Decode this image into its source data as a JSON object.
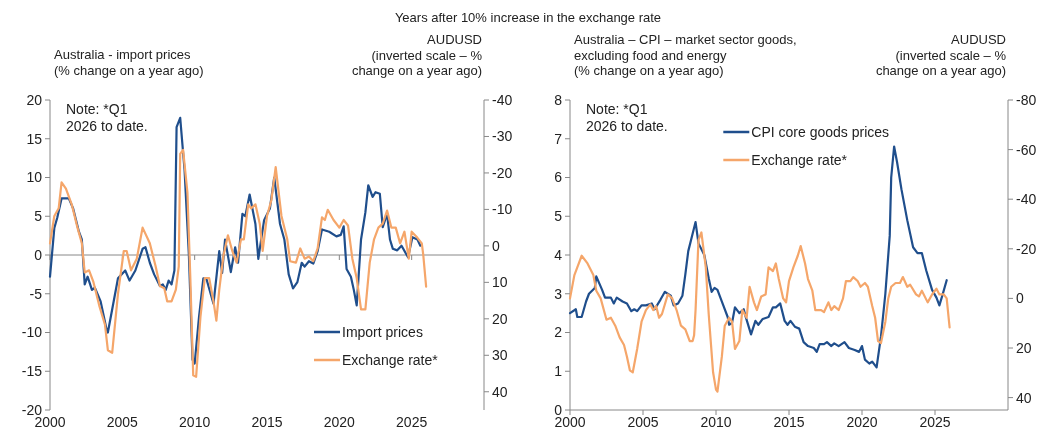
{
  "chart_data": [
    {
      "type": "line",
      "title": "Years after 10% increase in the exchange rate",
      "ylabel": "Australia - import prices\n(% change on a year ago)",
      "y2label": "AUDUSD\n(inverted scale – %\nchange on a year ago)",
      "annotations": [
        "Note: *Q1\n2026 to date."
      ],
      "xlim": [
        2000,
        2030
      ],
      "xticks": [
        2000,
        2005,
        2010,
        2015,
        2020,
        2025
      ],
      "ylim": [
        -20,
        20
      ],
      "yticks": [
        -20,
        -15,
        -10,
        -5,
        0,
        5,
        10,
        15,
        20
      ],
      "y2lim": [
        45,
        -40
      ],
      "y2ticks": [
        -40,
        -30,
        -20,
        -10,
        0,
        10,
        20,
        30,
        40
      ],
      "legend": "bottom right",
      "series": [
        {
          "name": "Import prices",
          "color": "#1f4e8c",
          "x": [
            2000.0,
            2000.3,
            2000.5,
            2000.8,
            2001.3,
            2001.6,
            2002.0,
            2002.2,
            2002.4,
            2002.6,
            2002.9,
            2003.1,
            2003.5,
            2003.9,
            2004.0,
            2004.4,
            2004.7,
            2005.2,
            2005.5,
            2005.9,
            2006.4,
            2006.6,
            2006.9,
            2007.2,
            2007.6,
            2007.8,
            2008.0,
            2008.2,
            2008.4,
            2008.6,
            2008.75,
            2009.0,
            2009.3,
            2009.6,
            2009.85,
            2010.0,
            2010.3,
            2010.6,
            2010.8,
            2011.3,
            2011.7,
            2011.9,
            2012.1,
            2012.5,
            2012.8,
            2013.0,
            2013.3,
            2013.5,
            2013.8,
            2014.2,
            2014.4,
            2014.8,
            2015.2,
            2015.5,
            2015.9,
            2016.2,
            2016.5,
            2016.8,
            2017.1,
            2017.4,
            2017.6,
            2017.9,
            2018.2,
            2018.5,
            2018.8,
            2019.3,
            2019.8,
            2020.1,
            2020.3,
            2020.5,
            2020.8,
            2021.0,
            2021.2,
            2021.5,
            2021.8,
            2022.0,
            2022.3,
            2022.5,
            2022.8,
            2023.0,
            2023.3,
            2023.5,
            2023.7,
            2024.0,
            2024.3,
            2024.75,
            2025.05,
            2025.4,
            2025.6
          ],
          "values": [
            -2.8,
            3.5,
            4.8,
            7.3,
            7.3,
            6,
            3,
            2,
            -3.8,
            -2.8,
            -4.5,
            -4.2,
            -6,
            -9.5,
            -10,
            -6,
            -3,
            -2,
            -3.3,
            -2,
            0.8,
            1,
            -1,
            -2.5,
            -4,
            -3.8,
            -4.5,
            -3.3,
            -3.8,
            -2,
            16.5,
            17.7,
            11,
            0,
            -13.5,
            -14,
            -8,
            -3,
            -3,
            -6.3,
            0.5,
            -2.3,
            2,
            -2.2,
            1,
            -1,
            5.3,
            5.0,
            7.8,
            4,
            -0.5,
            4.5,
            6,
            10,
            4,
            2,
            -2.5,
            -4.3,
            -3.5,
            -1,
            -1.5,
            -0.8,
            -1.1,
            0.5,
            3.3,
            3,
            2.4,
            2.6,
            3.7,
            -1.8,
            -2.8,
            -4.5,
            -6.5,
            2,
            5.5,
            9,
            7.5,
            8.1,
            7.9,
            3.6,
            5.3,
            2,
            0.8,
            0.6,
            1.2,
            -0.3,
            2.3,
            2,
            1.2
          ]
        },
        {
          "name": "Exchange rate*",
          "color": "#f5a66a",
          "axis": "y2",
          "x": [
            2000.0,
            2000.3,
            2000.6,
            2000.8,
            2001.1,
            2001.5,
            2001.9,
            2002.2,
            2002.4,
            2002.7,
            2003.0,
            2003.4,
            2003.8,
            2004.0,
            2004.3,
            2004.7,
            2005.1,
            2005.3,
            2005.6,
            2006.0,
            2006.4,
            2006.9,
            2007.3,
            2007.6,
            2007.9,
            2008.1,
            2008.4,
            2008.7,
            2008.9,
            2009.0,
            2009.2,
            2009.5,
            2009.7,
            2009.9,
            2010.1,
            2010.4,
            2010.7,
            2011.0,
            2011.3,
            2011.5,
            2011.7,
            2012.0,
            2012.3,
            2012.6,
            2012.9,
            2013.2,
            2013.4,
            2013.7,
            2013.9,
            2014.2,
            2014.5,
            2014.7,
            2015.0,
            2015.3,
            2015.6,
            2016.0,
            2016.4,
            2016.6,
            2017.0,
            2017.3,
            2017.6,
            2017.9,
            2018.2,
            2018.5,
            2018.8,
            2019.0,
            2019.2,
            2019.6,
            2020.0,
            2020.3,
            2020.6,
            2020.9,
            2021.2,
            2021.5,
            2021.8,
            2022.1,
            2022.4,
            2022.7,
            2023.0,
            2023.3,
            2023.6,
            2023.9,
            2024.2,
            2024.5,
            2024.8,
            2025.0,
            2025.4,
            2025.7,
            2025.8,
            2026.0
          ],
          "values": [
            -0.7,
            -8.2,
            -10.3,
            -17.4,
            -15.7,
            -11.4,
            -5.0,
            -0.7,
            7.3,
            6.7,
            9.9,
            16.3,
            21.6,
            28.6,
            29.3,
            13.1,
            1.4,
            1.4,
            6.7,
            3.5,
            -5.0,
            -0.7,
            5.6,
            11.0,
            11.6,
            15.2,
            15.2,
            12.0,
            5.6,
            -25.2,
            -26.3,
            -14.6,
            8.8,
            35.5,
            35.9,
            19.5,
            8.8,
            8.8,
            15.2,
            20.5,
            12.0,
            2.4,
            -2.9,
            1.4,
            4.6,
            -1.8,
            -1.8,
            -11.4,
            -10.3,
            -11.4,
            -6.1,
            1.4,
            -8.2,
            -12.5,
            -21.6,
            -8.2,
            -1.8,
            4.2,
            4.6,
            0.7,
            3.5,
            2.9,
            4.2,
            0.7,
            -7.8,
            -7.1,
            -9.9,
            -7.1,
            -5.0,
            -7.1,
            -5.6,
            3.5,
            8.8,
            17.4,
            17.4,
            4.6,
            -1.8,
            -5.0,
            -6.1,
            -9.7,
            -5.0,
            -5.0,
            -0.7,
            -3.9,
            3.5,
            -3.9,
            -2.2,
            -0.7,
            2.4,
            11.2
          ]
        }
      ]
    },
    {
      "type": "line",
      "ylabel": "Australia – CPI – market sector goods,\nexcluding food and energy\n(% change on a year ago)",
      "y2label": "AUDUSD\n(inverted scale – %\nchange on a year ago)",
      "annotations": [
        "Note: *Q1\n2026 to date."
      ],
      "xlim": [
        2000,
        2030
      ],
      "xticks": [
        2000,
        2005,
        2010,
        2015,
        2020,
        2025
      ],
      "ylim": [
        0,
        8
      ],
      "yticks": [
        0,
        1,
        2,
        3,
        4,
        5,
        6,
        7,
        8
      ],
      "y2lim": [
        45,
        -80
      ],
      "y2ticks": [
        -80,
        -60,
        -40,
        -20,
        0,
        20,
        40
      ],
      "legend": "top",
      "series": [
        {
          "name": "CPI core goods prices",
          "color": "#1f4e8c",
          "x": [
            2000.0,
            2000.4,
            2000.5,
            2000.8,
            2001.1,
            2001.3,
            2001.7,
            2001.8,
            2002.2,
            2002.4,
            2002.8,
            2003.0,
            2003.2,
            2003.6,
            2003.9,
            2004.2,
            2004.4,
            2004.6,
            2004.9,
            2005.2,
            2005.6,
            2005.8,
            2006.2,
            2006.5,
            2006.9,
            2007.1,
            2007.4,
            2007.7,
            2007.9,
            2008.1,
            2008.3,
            2008.6,
            2008.8,
            2009.2,
            2009.5,
            2009.7,
            2009.9,
            2010.1,
            2010.5,
            2010.8,
            2010.9,
            2011.1,
            2011.3,
            2011.6,
            2011.9,
            2012.0,
            2012.4,
            2012.7,
            2012.9,
            2013.2,
            2013.6,
            2013.9,
            2014.1,
            2014.4,
            2014.7,
            2014.9,
            2015.1,
            2015.4,
            2015.7,
            2016.0,
            2016.3,
            2016.7,
            2016.9,
            2017.1,
            2017.4,
            2017.6,
            2017.9,
            2018.1,
            2018.4,
            2018.8,
            2019.1,
            2019.5,
            2019.8,
            2020.0,
            2020.2,
            2020.5,
            2020.7,
            2021.0,
            2021.3,
            2021.6,
            2021.9,
            2022.0,
            2022.2,
            2022.4,
            2022.7,
            2023.1,
            2023.5,
            2023.8,
            2024.1,
            2024.4,
            2024.8,
            2025.1,
            2025.3,
            2025.5,
            2025.8
          ],
          "values": [
            2.5,
            2.6,
            2.4,
            2.4,
            2.8,
            3.0,
            3.15,
            3.45,
            3.1,
            2.9,
            2.9,
            2.75,
            2.9,
            2.8,
            2.75,
            2.55,
            2.6,
            2.55,
            2.7,
            2.7,
            2.75,
            2.6,
            2.85,
            3.05,
            2.95,
            2.7,
            2.75,
            2.95,
            3.5,
            4.1,
            4.4,
            4.85,
            4.3,
            4.0,
            3.4,
            3.05,
            3.15,
            3.1,
            2.7,
            2.4,
            2.2,
            2.25,
            2.65,
            2.5,
            2.6,
            2.45,
            1.95,
            2.3,
            2.2,
            2.35,
            2.4,
            2.65,
            2.65,
            2.75,
            2.3,
            2.2,
            2.3,
            2.15,
            2.1,
            1.75,
            1.65,
            1.6,
            1.5,
            1.7,
            1.7,
            1.75,
            1.65,
            1.72,
            1.65,
            1.75,
            1.6,
            1.55,
            1.5,
            1.65,
            1.3,
            1.2,
            1.25,
            1.1,
            1.9,
            3.0,
            4.5,
            6.0,
            6.8,
            6.4,
            5.7,
            4.9,
            4.2,
            4.05,
            4.05,
            3.6,
            3.1,
            2.9,
            2.7,
            2.95,
            3.35
          ]
        },
        {
          "name": "Exchange rate*",
          "color": "#f5a66a",
          "axis": "y2",
          "x": [
            2000.0,
            2000.3,
            2000.5,
            2000.8,
            2001.2,
            2001.6,
            2001.8,
            2002.1,
            2002.5,
            2002.8,
            2003.1,
            2003.4,
            2003.7,
            2003.9,
            2004.1,
            2004.3,
            2004.6,
            2004.9,
            2005.2,
            2005.5,
            2005.7,
            2005.9,
            2006.1,
            2006.3,
            2006.7,
            2007.0,
            2007.3,
            2007.6,
            2007.9,
            2008.2,
            2008.4,
            2008.5,
            2008.6,
            2008.8,
            2009.0,
            2009.3,
            2009.5,
            2009.8,
            2010.0,
            2010.1,
            2010.4,
            2010.6,
            2010.9,
            2011.1,
            2011.3,
            2011.6,
            2011.8,
            2012.1,
            2012.3,
            2012.6,
            2012.8,
            2013.1,
            2013.4,
            2013.6,
            2013.9,
            2014.1,
            2014.3,
            2014.6,
            2014.8,
            2015.0,
            2015.3,
            2015.6,
            2015.8,
            2016.1,
            2016.3,
            2016.6,
            2016.8,
            2017.2,
            2017.4,
            2017.7,
            2017.9,
            2018.1,
            2018.4,
            2018.7,
            2018.9,
            2019.2,
            2019.4,
            2019.7,
            2019.9,
            2020.2,
            2020.4,
            2020.7,
            2020.9,
            2021.1,
            2021.3,
            2021.6,
            2021.8,
            2022.0,
            2022.3,
            2022.6,
            2022.8,
            2023.1,
            2023.3,
            2023.7,
            2023.9,
            2024.1,
            2024.5,
            2024.8,
            2025.1,
            2025.3,
            2025.6,
            2025.8,
            2026.0
          ],
          "values": [
            0.0,
            -9.4,
            -12.5,
            -17.2,
            -14.1,
            -9.4,
            -3.1,
            0.0,
            8.6,
            7.8,
            11.0,
            15.7,
            18.8,
            23.5,
            29.0,
            29.8,
            20.4,
            9.4,
            4.7,
            2.4,
            4.7,
            3.1,
            7.8,
            6.3,
            -1.6,
            0.0,
            4.7,
            11.0,
            12.5,
            17.2,
            17.2,
            14.9,
            4.7,
            -23.5,
            -26.6,
            -12.5,
            6.3,
            29.8,
            36.8,
            37.6,
            23.5,
            11.0,
            7.8,
            9.4,
            20.4,
            17.2,
            4.7,
            7.8,
            -4.7,
            1.6,
            4.7,
            -0.8,
            -1.6,
            -12.5,
            -11.0,
            -14.1,
            -7.8,
            0.0,
            1.6,
            -7.0,
            -12.5,
            -17.2,
            -21.1,
            -14.1,
            -7.8,
            -3.1,
            4.7,
            4.7,
            5.5,
            1.6,
            4.7,
            3.1,
            4.7,
            0.0,
            -7.0,
            -7.0,
            -8.6,
            -7.0,
            -4.7,
            -6.2,
            -4.7,
            3.1,
            7.8,
            17.2,
            18.0,
            9.4,
            0.0,
            -4.7,
            -6.2,
            -6.2,
            -8.6,
            -4.7,
            -5.5,
            -1.6,
            -0.8,
            -3.1,
            1.6,
            -1.6,
            -3.9,
            -1.6,
            -1.6,
            0.0,
            11.7
          ]
        }
      ]
    }
  ]
}
